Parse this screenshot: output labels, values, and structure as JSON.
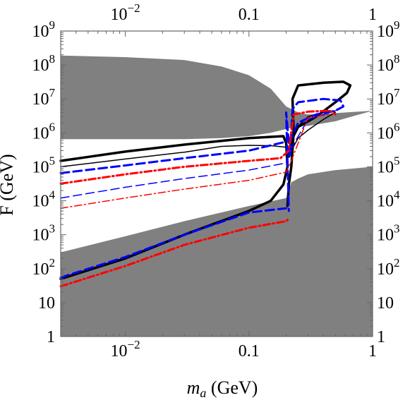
{
  "chart_data": {
    "type": "line",
    "title": "",
    "xlabel": "m_a (GeV)",
    "xlabel_symbol": "m",
    "xlabel_subscript": "a",
    "xlabel_unit": " (GeV)",
    "ylabel": "F (GeV)",
    "xscale": "log",
    "yscale": "log",
    "xlim": [
      0.003,
      1
    ],
    "ylim": [
      1,
      1000000000
    ],
    "grid": false,
    "legend": "none",
    "x_ticks": [
      {
        "value": 0.01,
        "base": "10",
        "exp": "−2"
      },
      {
        "value": 0.1,
        "text": "0.1"
      },
      {
        "value": 1,
        "text": "1"
      }
    ],
    "y_ticks": [
      {
        "value": 1,
        "text": "1"
      },
      {
        "value": 10,
        "text": "10"
      },
      {
        "value": 100,
        "base": "10",
        "exp": "2"
      },
      {
        "value": 1000,
        "base": "10",
        "exp": "3"
      },
      {
        "value": 10000,
        "base": "10",
        "exp": "4"
      },
      {
        "value": 100000,
        "base": "10",
        "exp": "5"
      },
      {
        "value": 1000000,
        "base": "10",
        "exp": "6"
      },
      {
        "value": 10000000,
        "base": "10",
        "exp": "7"
      },
      {
        "value": 100000000,
        "base": "10",
        "exp": "8"
      },
      {
        "value": 1000000000,
        "base": "10",
        "exp": "9"
      }
    ],
    "excluded_regions": [
      {
        "color": "#808080",
        "points": [
          [
            0.003,
            190000000
          ],
          [
            0.01,
            170000000
          ],
          [
            0.03,
            140000000
          ],
          [
            0.06,
            90000000
          ],
          [
            0.1,
            50000000
          ],
          [
            0.15,
            20000000
          ],
          [
            0.2,
            6000000
          ],
          [
            0.25,
            4000000
          ],
          [
            0.3,
            3500000
          ],
          [
            0.5,
            3800000
          ],
          [
            1,
            4500000
          ],
          [
            0.5,
            2200000
          ],
          [
            0.3,
            1600000
          ],
          [
            0.25,
            1600000
          ],
          [
            0.2,
            1300000
          ],
          [
            0.15,
            1000000
          ],
          [
            0.1,
            800000
          ],
          [
            0.06,
            700000
          ],
          [
            0.03,
            650000
          ],
          [
            0.01,
            650000
          ],
          [
            0.003,
            650000
          ]
        ]
      },
      {
        "color": "#808080",
        "points": [
          [
            0.003,
            1
          ],
          [
            1,
            1
          ],
          [
            1,
            100000
          ],
          [
            0.5,
            80000
          ],
          [
            0.3,
            60000
          ],
          [
            0.25,
            45000
          ],
          [
            0.22,
            35000
          ],
          [
            0.2,
            12000
          ],
          [
            0.1,
            7000
          ],
          [
            0.03,
            2500
          ],
          [
            0.01,
            900
          ],
          [
            0.003,
            300
          ]
        ]
      }
    ],
    "series": [
      {
        "color": "#000000",
        "style": "solid",
        "width": 3.5,
        "points": [
          [
            0.003,
            50
          ],
          [
            0.01,
            200
          ],
          [
            0.03,
            1000
          ],
          [
            0.1,
            5000
          ],
          [
            0.15,
            10000
          ],
          [
            0.19,
            30000
          ],
          [
            0.205,
            100000
          ],
          [
            0.2,
            500000
          ],
          [
            0.19,
            800000
          ],
          [
            0.1,
            700000
          ],
          [
            0.03,
            450000
          ],
          [
            0.01,
            280000
          ],
          [
            0.003,
            150000
          ]
        ]
      },
      {
        "color": "#000000",
        "style": "solid",
        "width": 3.5,
        "points": [
          [
            0.205,
            7000
          ],
          [
            0.21,
            30000
          ],
          [
            0.22,
            100000
          ],
          [
            0.23,
            1000000
          ],
          [
            0.225,
            10000000
          ],
          [
            0.25,
            25000000
          ],
          [
            0.4,
            30000000
          ],
          [
            0.58,
            32000000
          ],
          [
            0.66,
            25000000
          ],
          [
            0.62,
            15000000
          ],
          [
            0.5,
            8000000
          ],
          [
            0.35,
            3000000
          ],
          [
            0.25,
            1500000
          ],
          [
            0.22,
            600000
          ],
          [
            0.21,
            200000
          ]
        ]
      },
      {
        "color": "#000000",
        "style": "solid",
        "width": 1.5,
        "points": [
          [
            0.003,
            100000
          ],
          [
            0.01,
            170000
          ],
          [
            0.03,
            270000
          ],
          [
            0.06,
            400000
          ],
          [
            0.1,
            430000
          ],
          [
            0.15,
            420000
          ],
          [
            0.2,
            380000
          ],
          [
            0.21,
            300000
          ],
          [
            0.22,
            1000000
          ],
          [
            0.3,
            3000000
          ],
          [
            0.45,
            4500000
          ],
          [
            0.5,
            4000000
          ],
          [
            0.4,
            2500000
          ],
          [
            0.3,
            1200000
          ],
          [
            0.25,
            700000
          ],
          [
            0.22,
            300000
          ]
        ]
      },
      {
        "color": "#0000ff",
        "style": "dash",
        "width": 3,
        "points": [
          [
            0.003,
            65000
          ],
          [
            0.01,
            110000
          ],
          [
            0.03,
            180000
          ],
          [
            0.1,
            300000
          ],
          [
            0.2,
            550000
          ],
          [
            0.22,
            700000
          ],
          [
            0.25,
            2000000
          ],
          [
            0.35,
            3500000
          ],
          [
            0.5,
            4500000
          ],
          [
            0.58,
            6000000
          ],
          [
            0.55,
            9000000
          ],
          [
            0.4,
            10000000
          ],
          [
            0.25,
            8000000
          ],
          [
            0.225,
            5000000
          ],
          [
            0.215,
            200000
          ],
          [
            0.2,
            4000000
          ],
          [
            0.21,
            5000
          ]
        ]
      },
      {
        "color": "#0000ff",
        "style": "dash",
        "width": 3,
        "points": [
          [
            0.003,
            55
          ],
          [
            0.01,
            220
          ],
          [
            0.03,
            1000
          ],
          [
            0.1,
            4500
          ],
          [
            0.2,
            6000
          ]
        ]
      },
      {
        "color": "#0000ff",
        "style": "dash",
        "width": 1.5,
        "points": [
          [
            0.003,
            12000
          ],
          [
            0.01,
            25000
          ],
          [
            0.03,
            45000
          ],
          [
            0.1,
            80000
          ],
          [
            0.2,
            130000
          ],
          [
            0.215,
            300000
          ],
          [
            0.3,
            2500000
          ],
          [
            0.45,
            4000000
          ],
          [
            0.5,
            4500000
          ]
        ]
      },
      {
        "color": "#ff0000",
        "style": "dashdot",
        "width": 3,
        "points": [
          [
            0.003,
            32000
          ],
          [
            0.01,
            60000
          ],
          [
            0.03,
            100000
          ],
          [
            0.1,
            150000
          ],
          [
            0.18,
            180000
          ],
          [
            0.21,
            300000
          ],
          [
            0.23,
            3500000
          ],
          [
            0.3,
            4200000
          ],
          [
            0.45,
            4500000
          ],
          [
            0.5,
            3500000
          ]
        ]
      },
      {
        "color": "#ff0000",
        "style": "dashdot",
        "width": 3,
        "points": [
          [
            0.003,
            30
          ],
          [
            0.01,
            120
          ],
          [
            0.03,
            500
          ],
          [
            0.1,
            1600
          ],
          [
            0.2,
            2500
          ],
          [
            0.21,
            3000
          ]
        ]
      },
      {
        "color": "#ff0000",
        "style": "dashdot",
        "width": 1.5,
        "points": [
          [
            0.003,
            6000
          ],
          [
            0.01,
            12000
          ],
          [
            0.03,
            22000
          ],
          [
            0.1,
            40000
          ],
          [
            0.2,
            70000
          ],
          [
            0.22,
            150000
          ],
          [
            0.3,
            2800000
          ],
          [
            0.45,
            3500000
          ]
        ]
      }
    ]
  }
}
